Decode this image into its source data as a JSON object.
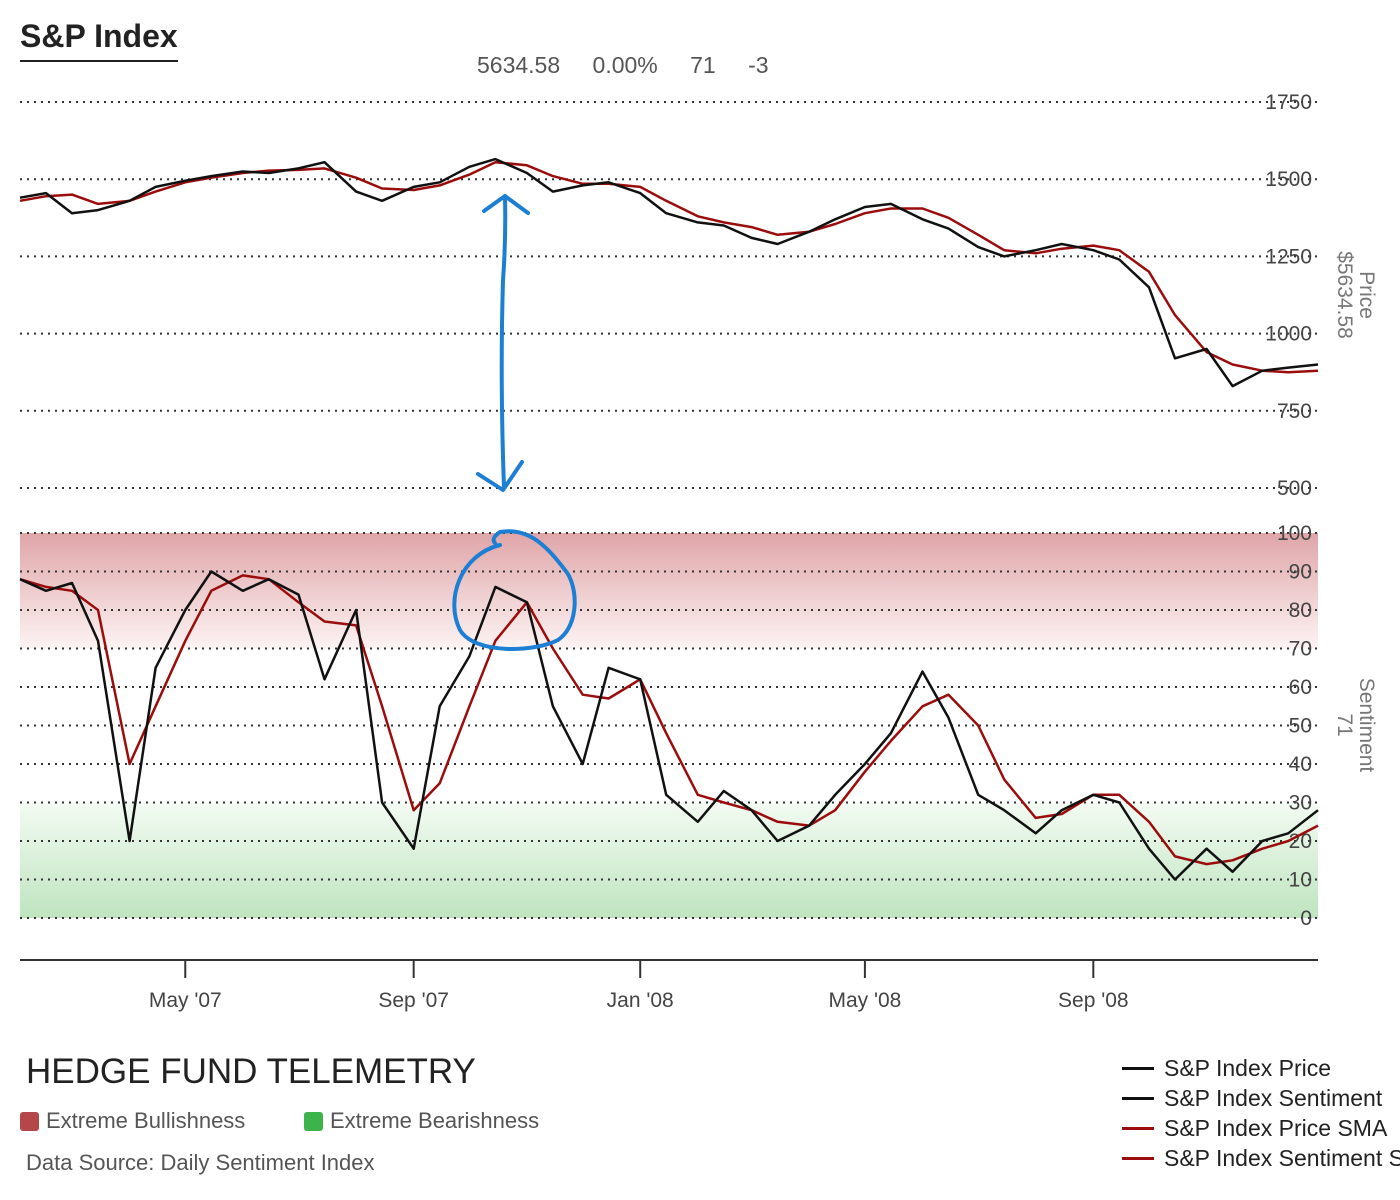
{
  "header": {
    "title": "S&P Index",
    "readout": {
      "price": "5634.58",
      "change": "0.00%",
      "sentiment": "71",
      "sentiment_change": "-3"
    }
  },
  "axis_titles": {
    "price": [
      "Price",
      "$5634.58"
    ],
    "sentiment": [
      "Sentiment",
      "71"
    ]
  },
  "footer": {
    "brand": "HEDGE FUND TELEMETRY",
    "zone_keys": [
      {
        "label": "Extreme Bullishness",
        "color": "#b5474b"
      },
      {
        "label": "Extreme Bearishness",
        "color": "#3cb44b"
      }
    ],
    "source": "Data Source: Daily Sentiment Index"
  },
  "legend": [
    {
      "label": "S&P Index Price",
      "color": "#111111"
    },
    {
      "label": "S&P Index Sentiment",
      "color": "#111111"
    },
    {
      "label": "S&P Index Price SMA",
      "color": "#9b0d0d"
    },
    {
      "label": "S&P Index Sentiment SMA",
      "color": "#9b0d0d"
    }
  ],
  "annotations": {
    "arrow": {
      "color": "#1d7fd4",
      "shape": "double-headed vertical arrow"
    },
    "circle": {
      "color": "#1d7fd4",
      "shape": "hand-drawn circle around sentiment peak"
    }
  },
  "chart_data": [
    {
      "type": "line",
      "panel": "price",
      "ylabel": "Price",
      "ylim": [
        500,
        1750
      ],
      "yticks": [
        500,
        750,
        1000,
        1250,
        1500,
        1750
      ],
      "xticks": [
        "May '07",
        "Sep '07",
        "Jan '08",
        "May '08",
        "Sep '08"
      ],
      "grid": true,
      "series": [
        {
          "name": "S&P Index Price",
          "color": "#111111",
          "x": [
            "2007-02-01",
            "2007-02-15",
            "2007-03-01",
            "2007-03-15",
            "2007-04-01",
            "2007-04-15",
            "2007-05-01",
            "2007-05-15",
            "2007-06-01",
            "2007-06-15",
            "2007-07-01",
            "2007-07-15",
            "2007-08-01",
            "2007-08-15",
            "2007-09-01",
            "2007-09-15",
            "2007-10-01",
            "2007-10-15",
            "2007-11-01",
            "2007-11-15",
            "2007-12-01",
            "2007-12-15",
            "2008-01-01",
            "2008-01-15",
            "2008-02-01",
            "2008-02-15",
            "2008-03-01",
            "2008-03-15",
            "2008-04-01",
            "2008-04-15",
            "2008-05-01",
            "2008-05-15",
            "2008-06-01",
            "2008-06-15",
            "2008-07-01",
            "2008-07-15",
            "2008-08-01",
            "2008-08-15",
            "2008-09-01",
            "2008-09-15",
            "2008-10-01",
            "2008-10-15",
            "2008-11-01",
            "2008-11-15",
            "2008-12-01",
            "2008-12-15",
            "2008-12-31"
          ],
          "values": [
            1440,
            1455,
            1390,
            1400,
            1430,
            1475,
            1495,
            1510,
            1525,
            1520,
            1535,
            1555,
            1460,
            1430,
            1475,
            1490,
            1540,
            1565,
            1520,
            1460,
            1480,
            1490,
            1455,
            1390,
            1360,
            1350,
            1310,
            1290,
            1330,
            1370,
            1410,
            1420,
            1370,
            1340,
            1280,
            1250,
            1270,
            1290,
            1270,
            1240,
            1150,
            920,
            950,
            830,
            880,
            890,
            900
          ]
        },
        {
          "name": "S&P Index Price SMA",
          "color": "#9b0d0d",
          "x": [
            "2007-02-01",
            "2007-02-15",
            "2007-03-01",
            "2007-03-15",
            "2007-04-01",
            "2007-04-15",
            "2007-05-01",
            "2007-05-15",
            "2007-06-01",
            "2007-06-15",
            "2007-07-01",
            "2007-07-15",
            "2007-08-01",
            "2007-08-15",
            "2007-09-01",
            "2007-09-15",
            "2007-10-01",
            "2007-10-15",
            "2007-11-01",
            "2007-11-15",
            "2007-12-01",
            "2007-12-15",
            "2008-01-01",
            "2008-01-15",
            "2008-02-01",
            "2008-02-15",
            "2008-03-01",
            "2008-03-15",
            "2008-04-01",
            "2008-04-15",
            "2008-05-01",
            "2008-05-15",
            "2008-06-01",
            "2008-06-15",
            "2008-07-01",
            "2008-07-15",
            "2008-08-01",
            "2008-08-15",
            "2008-09-01",
            "2008-09-15",
            "2008-10-01",
            "2008-10-15",
            "2008-11-01",
            "2008-11-15",
            "2008-12-01",
            "2008-12-15",
            "2008-12-31"
          ],
          "values": [
            1430,
            1445,
            1450,
            1420,
            1430,
            1460,
            1490,
            1505,
            1520,
            1528,
            1530,
            1535,
            1505,
            1470,
            1465,
            1480,
            1515,
            1555,
            1545,
            1510,
            1485,
            1485,
            1475,
            1430,
            1380,
            1360,
            1345,
            1320,
            1330,
            1355,
            1390,
            1405,
            1405,
            1375,
            1320,
            1270,
            1260,
            1275,
            1285,
            1270,
            1200,
            1060,
            940,
            900,
            880,
            875,
            880
          ]
        }
      ]
    },
    {
      "type": "line",
      "panel": "sentiment",
      "ylabel": "Sentiment",
      "ylim": [
        0,
        100
      ],
      "yticks": [
        0,
        10,
        20,
        30,
        40,
        50,
        60,
        70,
        80,
        90,
        100
      ],
      "zones": [
        {
          "name": "Extreme Bullishness",
          "range": [
            70,
            100
          ]
        },
        {
          "name": "Extreme Bearishness",
          "range": [
            0,
            30
          ]
        }
      ],
      "series": [
        {
          "name": "S&P Index Sentiment",
          "color": "#111111",
          "x": [
            "2007-02-01",
            "2007-02-15",
            "2007-03-01",
            "2007-03-15",
            "2007-04-01",
            "2007-04-15",
            "2007-05-01",
            "2007-05-15",
            "2007-06-01",
            "2007-06-15",
            "2007-07-01",
            "2007-07-15",
            "2007-08-01",
            "2007-08-15",
            "2007-09-01",
            "2007-09-15",
            "2007-10-01",
            "2007-10-15",
            "2007-11-01",
            "2007-11-15",
            "2007-12-01",
            "2007-12-15",
            "2008-01-01",
            "2008-01-15",
            "2008-02-01",
            "2008-02-15",
            "2008-03-01",
            "2008-03-15",
            "2008-04-01",
            "2008-04-15",
            "2008-05-01",
            "2008-05-15",
            "2008-06-01",
            "2008-06-15",
            "2008-07-01",
            "2008-07-15",
            "2008-08-01",
            "2008-08-15",
            "2008-09-01",
            "2008-09-15",
            "2008-10-01",
            "2008-10-15",
            "2008-11-01",
            "2008-11-15",
            "2008-12-01",
            "2008-12-15",
            "2008-12-31"
          ],
          "values": [
            88,
            85,
            87,
            72,
            20,
            65,
            80,
            90,
            85,
            88,
            84,
            62,
            80,
            30,
            18,
            55,
            68,
            86,
            82,
            55,
            40,
            65,
            62,
            32,
            25,
            33,
            28,
            20,
            24,
            32,
            40,
            48,
            64,
            52,
            32,
            28,
            22,
            28,
            32,
            30,
            18,
            10,
            18,
            12,
            20,
            22,
            28
          ]
        },
        {
          "name": "S&P Index Sentiment SMA",
          "color": "#9b0d0d",
          "x": [
            "2007-02-01",
            "2007-02-15",
            "2007-03-01",
            "2007-03-15",
            "2007-04-01",
            "2007-04-15",
            "2007-05-01",
            "2007-05-15",
            "2007-06-01",
            "2007-06-15",
            "2007-07-01",
            "2007-07-15",
            "2007-08-01",
            "2007-08-15",
            "2007-09-01",
            "2007-09-15",
            "2007-10-01",
            "2007-10-15",
            "2007-11-01",
            "2007-11-15",
            "2007-12-01",
            "2007-12-15",
            "2008-01-01",
            "2008-01-15",
            "2008-02-01",
            "2008-02-15",
            "2008-03-01",
            "2008-03-15",
            "2008-04-01",
            "2008-04-15",
            "2008-05-01",
            "2008-05-15",
            "2008-06-01",
            "2008-06-15",
            "2008-07-01",
            "2008-07-15",
            "2008-08-01",
            "2008-08-15",
            "2008-09-01",
            "2008-09-15",
            "2008-10-01",
            "2008-10-15",
            "2008-11-01",
            "2008-11-15",
            "2008-12-01",
            "2008-12-15",
            "2008-12-31"
          ],
          "values": [
            88,
            86,
            85,
            80,
            40,
            55,
            72,
            85,
            89,
            88,
            82,
            77,
            76,
            55,
            28,
            35,
            55,
            72,
            82,
            70,
            58,
            57,
            62,
            48,
            32,
            30,
            28,
            25,
            24,
            28,
            38,
            46,
            55,
            58,
            50,
            36,
            26,
            27,
            32,
            32,
            25,
            16,
            14,
            15,
            18,
            20,
            24
          ]
        }
      ]
    }
  ]
}
